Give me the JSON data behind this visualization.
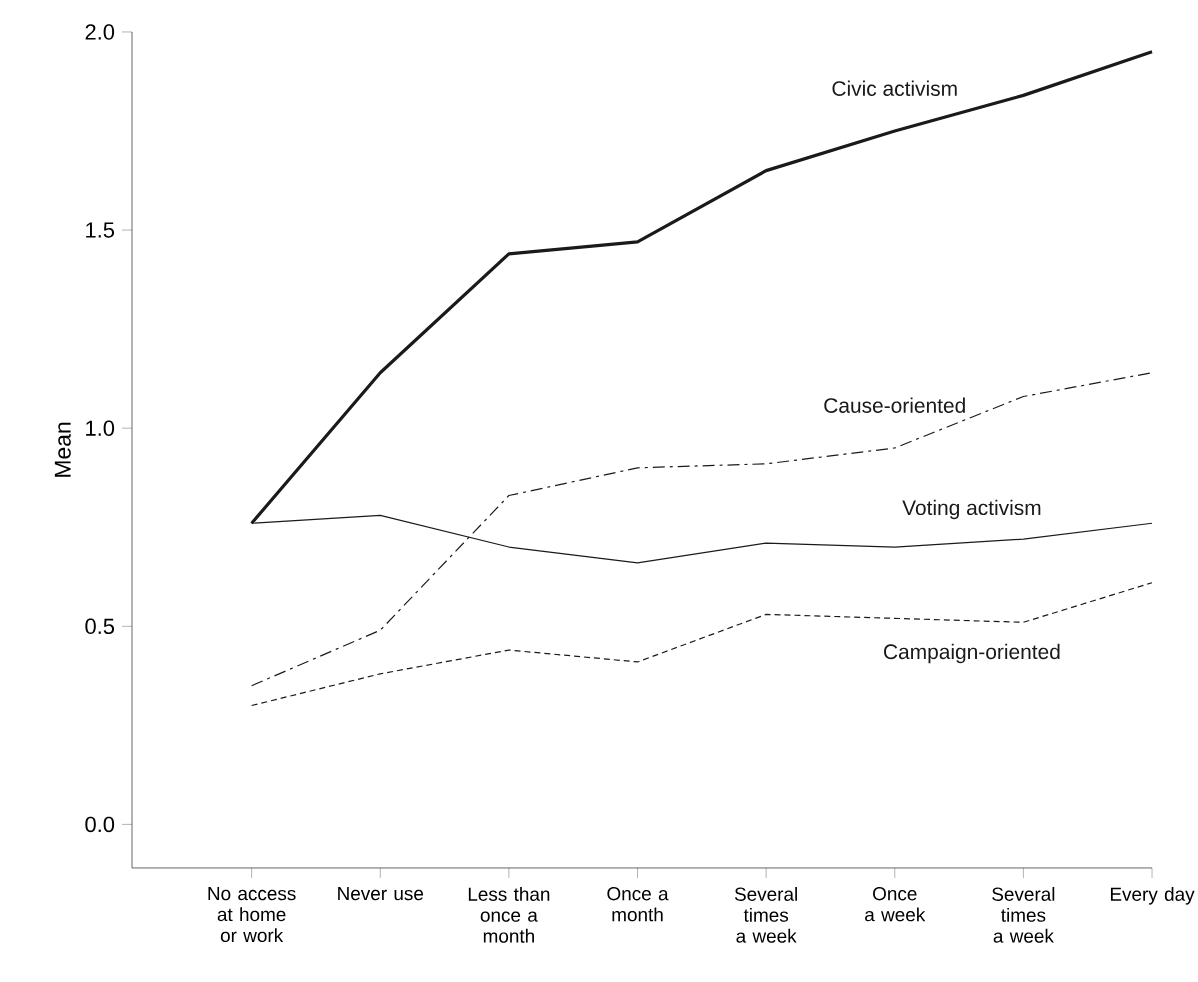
{
  "chart_data": {
    "type": "line",
    "ylabel": "Mean",
    "categories": [
      "No access at home or work",
      "Never use",
      "Less than once a month",
      "Once a month",
      "Several times a week",
      "Once a week",
      "Several times a week",
      "Every day"
    ],
    "ylim": [
      -0.11,
      2.0
    ],
    "yticks": [
      {
        "value": 0,
        "label": "0.0"
      },
      {
        "value": 0.5,
        "label": "0.5"
      },
      {
        "value": 1,
        "label": "1.0"
      },
      {
        "value": 1.5,
        "label": "1.5"
      },
      {
        "value": 2,
        "label": "2.0"
      }
    ],
    "marker": "none",
    "series": [
      {
        "name": "Civic activism",
        "color": "#1a1a1a",
        "line_style": "solid",
        "values": [
          0.76,
          1.14,
          1.44,
          1.47,
          1.65,
          1.75,
          1.84,
          1.95
        ]
      },
      {
        "name": "Cause-oriented",
        "color": "#1a1a1a",
        "line_style": "dashdot",
        "values": [
          0.35,
          0.49,
          0.83,
          0.9,
          0.91,
          0.95,
          1.08,
          1.14
        ]
      },
      {
        "name": "Voting activism",
        "color": "#1a1a1a",
        "line_style": "solid",
        "values": [
          0.76,
          0.78,
          0.7,
          0.66,
          0.71,
          0.7,
          0.72,
          0.76
        ]
      },
      {
        "name": "Campaign-oriented",
        "color": "#1a1a1a",
        "line_style": "dashed",
        "values": [
          0.3,
          0.38,
          0.44,
          0.41,
          0.53,
          0.52,
          0.51,
          0.61
        ]
      }
    ]
  }
}
